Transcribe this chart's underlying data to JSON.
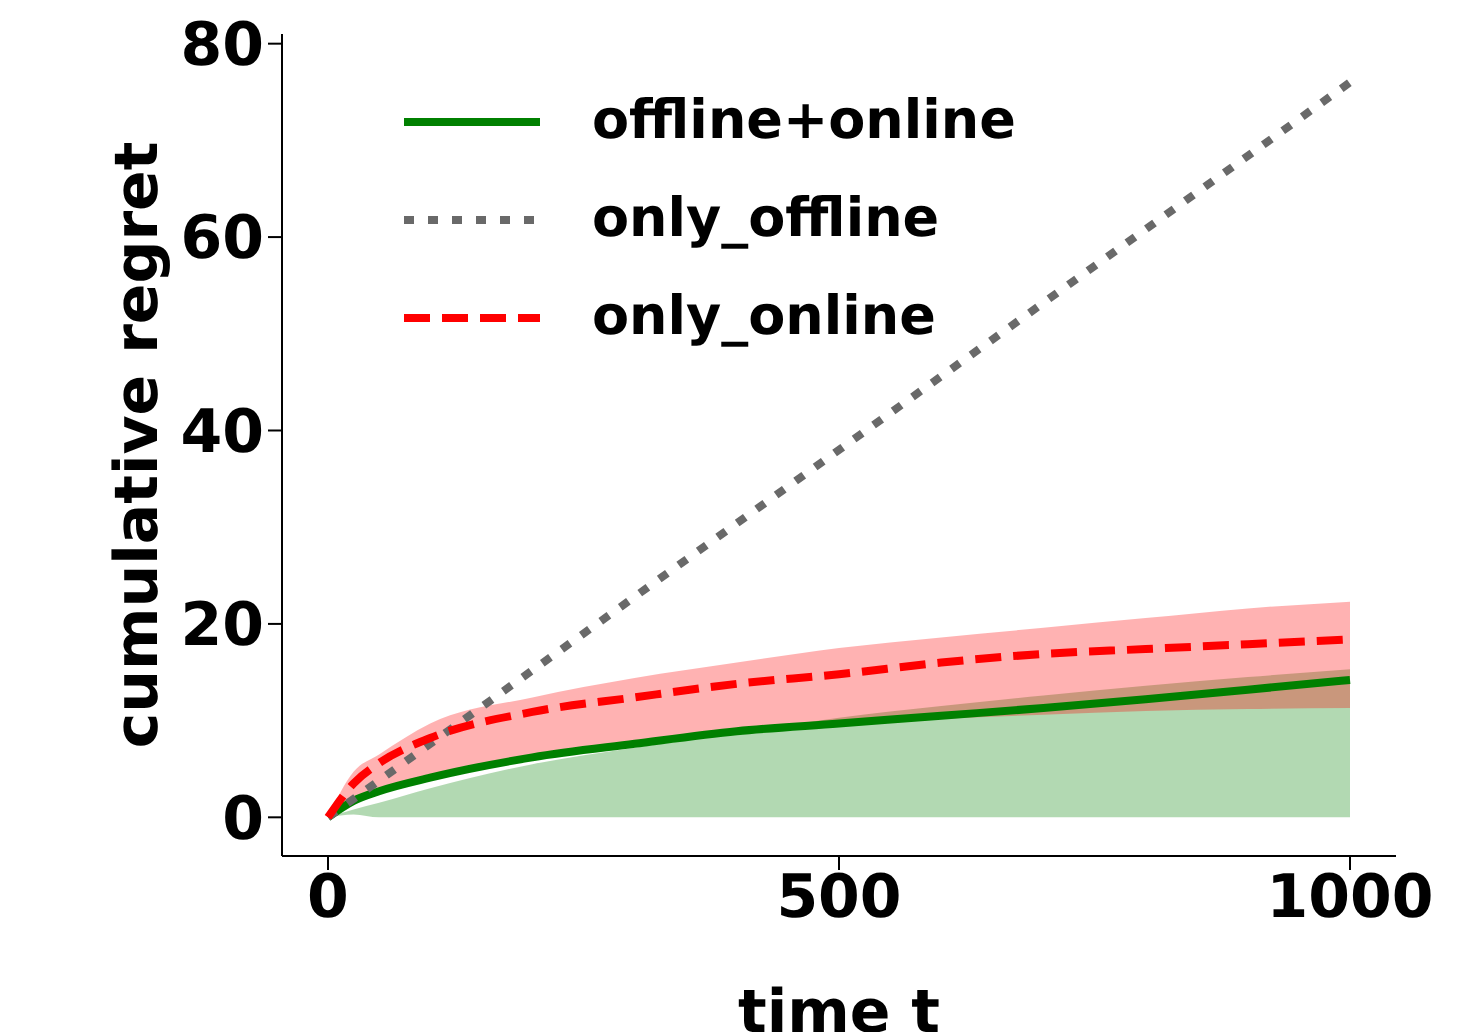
{
  "chart_data": {
    "type": "line",
    "xlabel": "time t",
    "ylabel": "cumulative regret",
    "x": [
      0,
      25,
      50,
      100,
      200,
      300,
      400,
      500,
      600,
      700,
      800,
      900,
      1000
    ],
    "series": [
      {
        "name": "offline+online",
        "color": "#008000",
        "line_style": "solid",
        "values": [
          0,
          1.7,
          2.7,
          4.1,
          6.2,
          7.6,
          8.9,
          9.7,
          10.5,
          11.3,
          12.2,
          13.2,
          14.2
        ],
        "lower": [
          0,
          0.3,
          0,
          0,
          0,
          0,
          0,
          0,
          0,
          0,
          0,
          0,
          0
        ],
        "upper": [
          0,
          0.8,
          1.5,
          3,
          5.5,
          7.2,
          8.7,
          10.3,
          11.5,
          12.6,
          13.6,
          14.5,
          15.3
        ]
      },
      {
        "name": "only_offline",
        "color": "#696969",
        "line_style": "dotted",
        "x": [
          0,
          1000
        ],
        "values": [
          0,
          76
        ]
      },
      {
        "name": "only_online",
        "color": "#ff0000",
        "line_style": "dashed",
        "values": [
          0,
          3.5,
          5.6,
          8.2,
          10.9,
          12.4,
          13.8,
          14.8,
          16,
          16.9,
          17.4,
          17.9,
          18.4
        ],
        "lower": [
          0,
          1.7,
          2.7,
          4.1,
          6.2,
          7.6,
          8.9,
          9.8,
          10.2,
          10.6,
          11,
          11.2,
          11.3
        ],
        "upper": [
          0,
          4.7,
          6.5,
          9.7,
          12.4,
          14.4,
          16,
          17.5,
          18.6,
          19.6,
          20.6,
          21.6,
          22.3
        ]
      }
    ],
    "xlim": [
      -45,
      1045
    ],
    "xticks": [
      0,
      500,
      1000
    ],
    "ylim": [
      -4,
      81
    ],
    "yticks": [
      0,
      20,
      40,
      60,
      80
    ],
    "grid": false,
    "legend": "top left",
    "marker": "none"
  }
}
